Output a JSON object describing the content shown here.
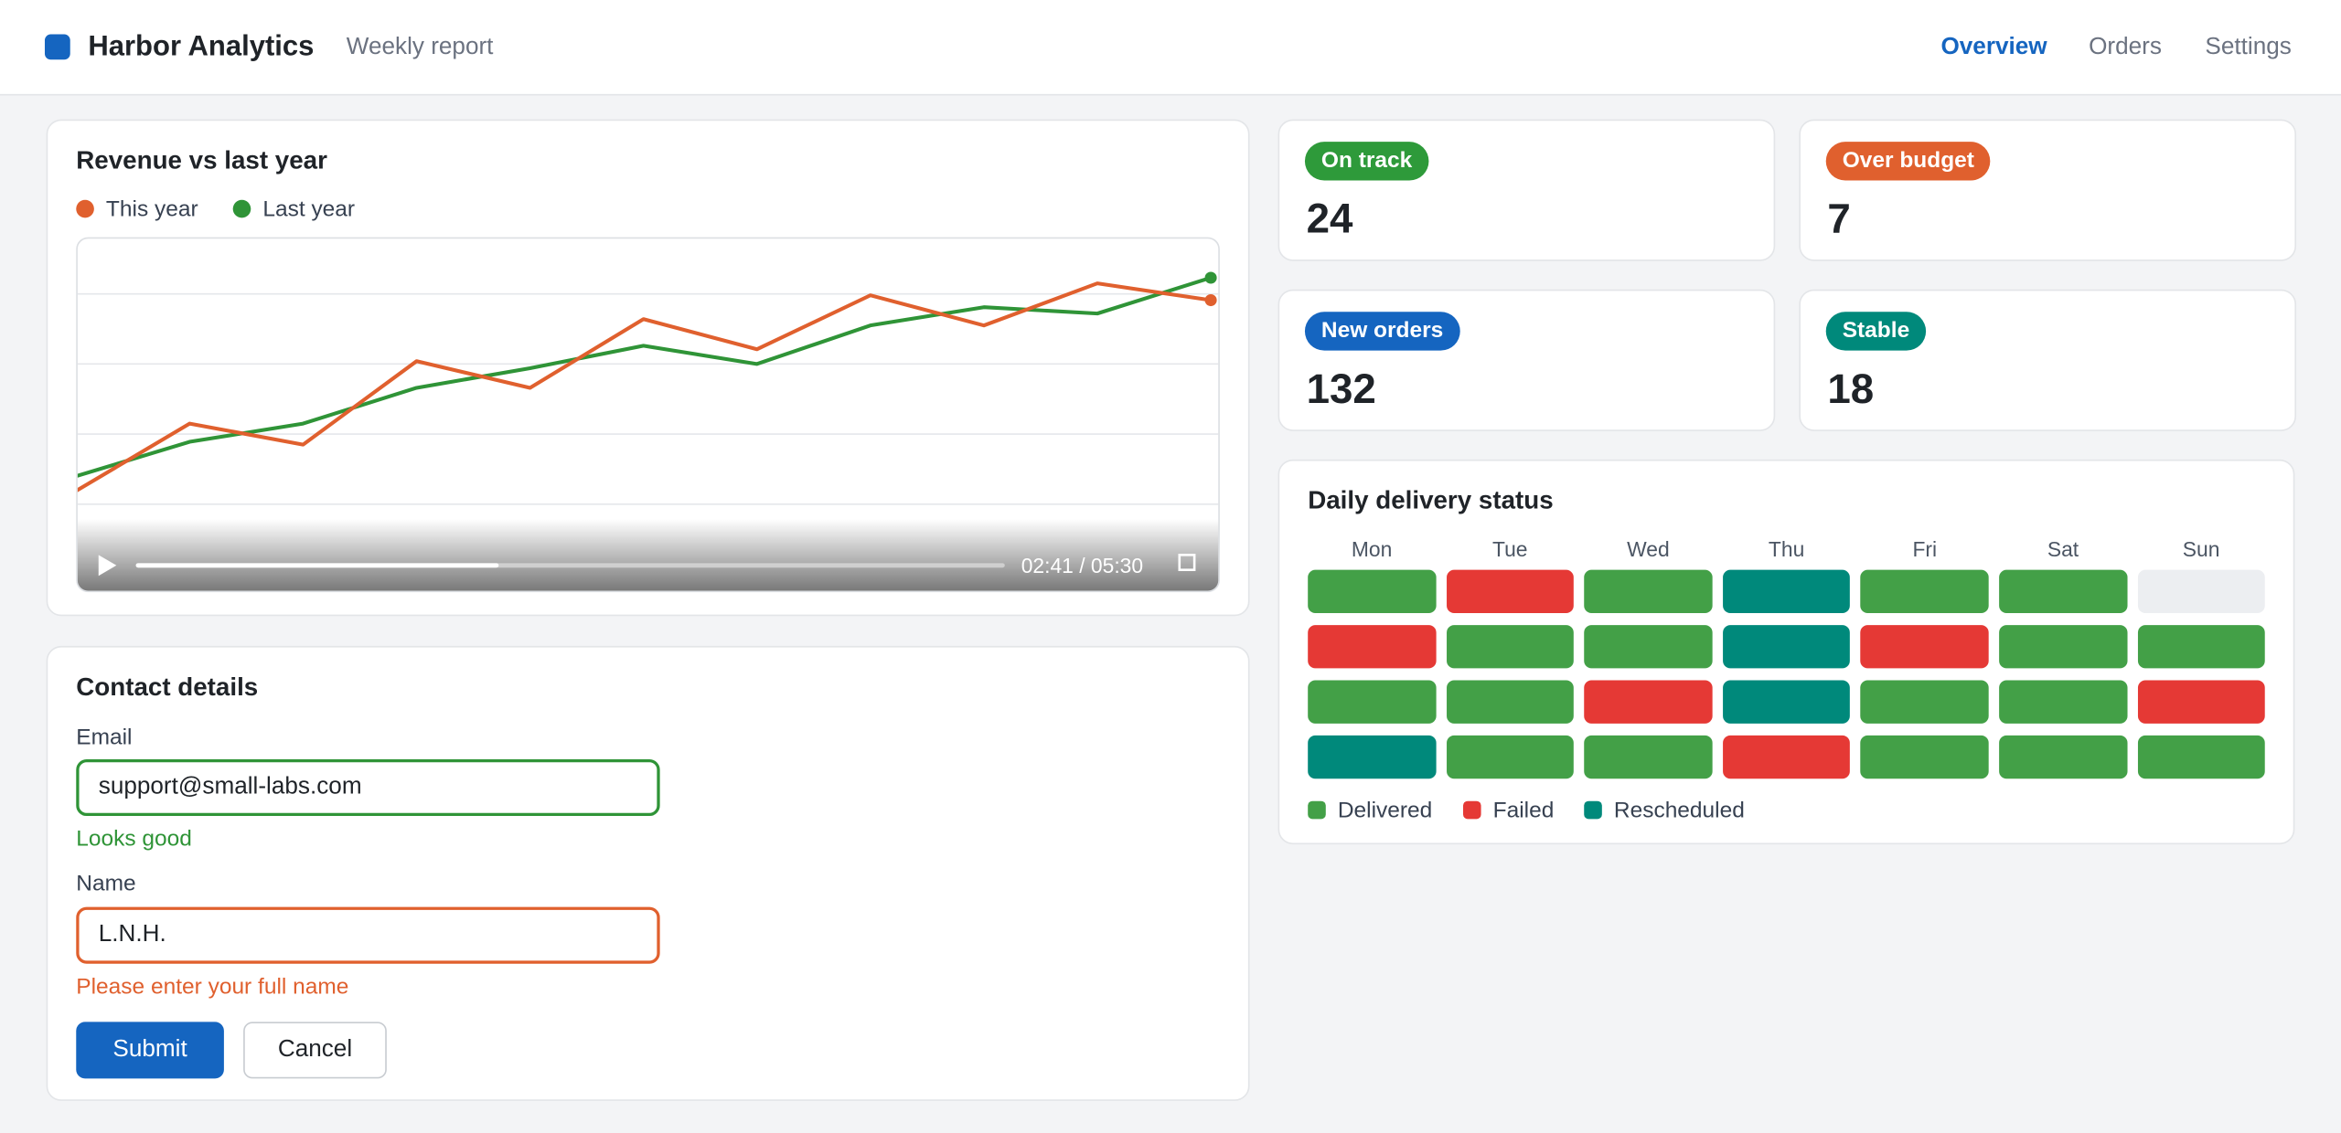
{
  "header": {
    "brand": "Harbor Analytics",
    "subtitle": "Weekly report",
    "nav": [
      "Overview",
      "Orders",
      "Settings"
    ],
    "active_nav": "Overview"
  },
  "chart_data": {
    "type": "line",
    "title": "Revenue vs last year",
    "x": [
      0,
      1,
      2,
      3,
      4,
      5,
      6,
      7,
      8,
      9,
      10
    ],
    "xlim": [
      0,
      10
    ],
    "ylim": [
      0,
      5
    ],
    "yticks": [
      1,
      2,
      3,
      4
    ],
    "grid": true,
    "series": [
      {
        "name": "This year",
        "color": "#e0602e",
        "values": [
          1.19,
          2.15,
          1.85,
          3.04,
          2.66,
          3.64,
          3.21,
          3.98,
          3.55,
          4.15,
          3.91
        ]
      },
      {
        "name": "Last year",
        "color": "#2f9437",
        "values": [
          1.4,
          1.89,
          2.15,
          2.66,
          2.94,
          3.26,
          3.0,
          3.55,
          3.81,
          3.72,
          4.23
        ]
      }
    ],
    "video_time": "02:41 / 05:30"
  },
  "stats": [
    {
      "label": "On track",
      "value": 24,
      "color": "#2e9a3a"
    },
    {
      "label": "Over budget",
      "value": 7,
      "color": "#e0602e"
    },
    {
      "label": "New orders",
      "value": 132,
      "color": "#1565c0"
    },
    {
      "label": "Stable",
      "value": 18,
      "color": "#00897b"
    }
  ],
  "form": {
    "title": "Contact details",
    "email_label": "Email",
    "email_value": "support@small-labs.com",
    "email_message": "Looks good",
    "name_label": "Name",
    "name_value": "L.N.H.",
    "name_message": "Please enter your full name",
    "submit": "Submit",
    "cancel": "Cancel"
  },
  "delivery": {
    "title": "Daily delivery status",
    "days": [
      "Mon",
      "Tue",
      "Wed",
      "Thu",
      "Fri",
      "Sat",
      "Sun"
    ],
    "legend": [
      {
        "label": "Delivered",
        "color": "#43a047"
      },
      {
        "label": "Failed",
        "color": "#e53935"
      },
      {
        "label": "Rescheduled",
        "color": "#00897b"
      }
    ],
    "rows": [
      [
        "Delivered",
        "Failed",
        "Delivered",
        "Rescheduled",
        "Delivered",
        "Delivered",
        null
      ],
      [
        "Failed",
        "Delivered",
        "Delivered",
        "Rescheduled",
        "Failed",
        "Delivered",
        "Delivered"
      ],
      [
        "Delivered",
        "Delivered",
        "Failed",
        "Rescheduled",
        "Delivered",
        "Delivered",
        "Failed"
      ],
      [
        "Rescheduled",
        "Delivered",
        "Delivered",
        "Failed",
        "Delivered",
        "Delivered",
        "Delivered"
      ]
    ]
  }
}
